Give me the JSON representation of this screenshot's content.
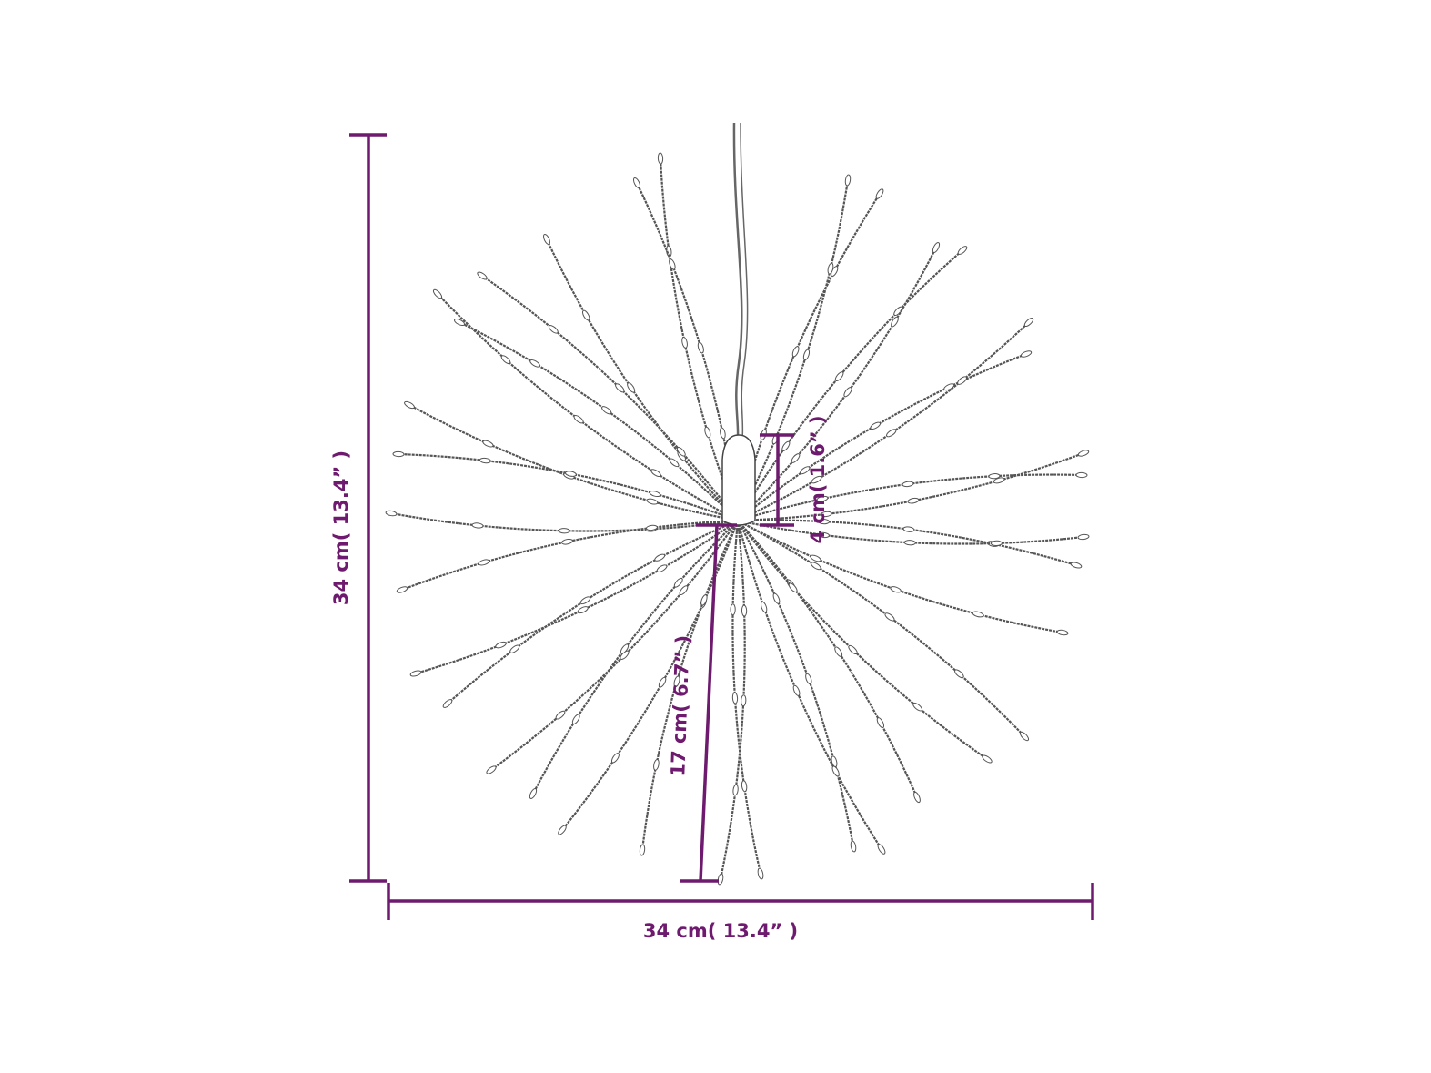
{
  "product": "hanging starburst LED string light",
  "colors": {
    "dimension": "#6e1a6e",
    "strand": "#555555",
    "background": "#ffffff"
  },
  "dimensions": {
    "height_label": "34 cm( 13.4” )",
    "width_label": "34 cm( 13.4” )",
    "cap_label": "4 cm( 1.6” )",
    "strand_label": "17 cm( 6.7” )"
  }
}
